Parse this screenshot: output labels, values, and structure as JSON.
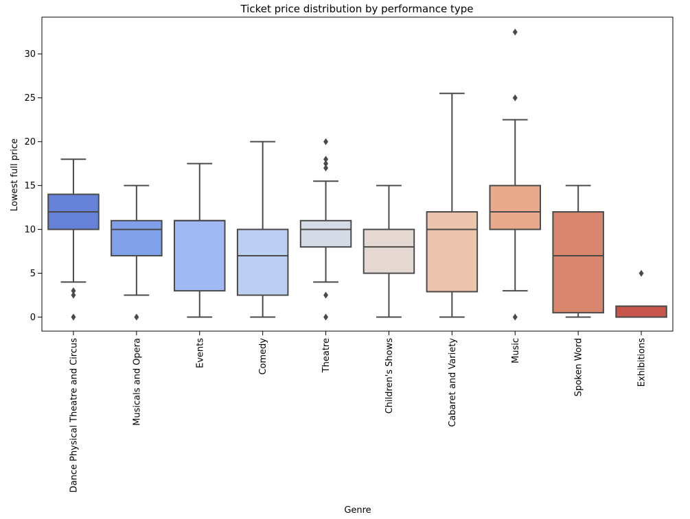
{
  "chart_data": {
    "type": "box",
    "title": "Ticket price distribution by performance type",
    "xlabel": "Genre",
    "ylabel": "Lowest full price",
    "ylim": [
      -1.6,
      34.2
    ],
    "yticks": [
      0,
      5,
      10,
      15,
      20,
      25,
      30
    ],
    "grid": false,
    "legend": "none",
    "categories": [
      "Dance Physical Theatre and Circus",
      "Musicals and Opera",
      "Events",
      "Comedy",
      "Theatre",
      "Children's Shows",
      "Cabaret and Variety",
      "Music",
      "Spoken Word",
      "Exhibitions"
    ],
    "boxes": [
      {
        "whislo": 4,
        "q1": 10,
        "med": 12,
        "q3": 14,
        "whishi": 18,
        "fliers": [
          0,
          2.5,
          3
        ],
        "color": "#6582d8"
      },
      {
        "whislo": 2.5,
        "q1": 7,
        "med": 10,
        "q3": 11,
        "whishi": 15,
        "fliers": [
          0
        ],
        "color": "#80a0ea"
      },
      {
        "whislo": 0,
        "q1": 3,
        "med": 11,
        "q3": 11,
        "whishi": 17.5,
        "fliers": [],
        "color": "#a0b9f3"
      },
      {
        "whislo": 0,
        "q1": 2.5,
        "med": 7,
        "q3": 10,
        "whishi": 20,
        "fliers": [],
        "color": "#bccef1"
      },
      {
        "whislo": 4,
        "q1": 8,
        "med": 10,
        "q3": 11,
        "whishi": 15.5,
        "fliers": [
          0,
          2.5,
          17,
          17.5,
          18,
          20
        ],
        "color": "#d5dbe6"
      },
      {
        "whislo": 0,
        "q1": 5,
        "med": 8,
        "q3": 10,
        "whishi": 15,
        "fliers": [],
        "color": "#e5d7d1"
      },
      {
        "whislo": 0,
        "q1": 2.9,
        "med": 10,
        "q3": 12,
        "whishi": 25.5,
        "fliers": [],
        "color": "#ecc3ad"
      },
      {
        "whislo": 3,
        "q1": 10,
        "med": 12,
        "q3": 15,
        "whishi": 22.5,
        "fliers": [
          0,
          25,
          32.5
        ],
        "color": "#e8a98c"
      },
      {
        "whislo": 0,
        "q1": 0.5,
        "med": 7,
        "q3": 12,
        "whishi": 15,
        "fliers": [],
        "color": "#d8866e"
      },
      {
        "whislo": 0,
        "q1": 0,
        "med": 0,
        "q3": 1.25,
        "whishi": 1.25,
        "fliers": [
          5
        ],
        "color": "#c6554c"
      }
    ]
  }
}
